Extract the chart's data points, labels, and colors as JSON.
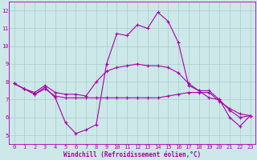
{
  "xlabel": "Windchill (Refroidissement éolien,°C)",
  "bg_color": "#cce8e8",
  "line_color": "#aa00aa",
  "grid_color": "#aacccc",
  "xlim": [
    -0.5,
    23.5
  ],
  "ylim": [
    4.5,
    12.5
  ],
  "yticks": [
    5,
    6,
    7,
    8,
    9,
    10,
    11,
    12
  ],
  "xticks": [
    0,
    1,
    2,
    3,
    4,
    5,
    6,
    7,
    8,
    9,
    10,
    11,
    12,
    13,
    14,
    15,
    16,
    17,
    18,
    19,
    20,
    21,
    22,
    23
  ],
  "series1_x": [
    0,
    1,
    2,
    3,
    4,
    5,
    6,
    7,
    8,
    9,
    10,
    11,
    12,
    13,
    14,
    15,
    16,
    17,
    18,
    19,
    20,
    21,
    22,
    23
  ],
  "series1_y": [
    7.9,
    7.6,
    7.3,
    7.7,
    7.1,
    5.7,
    5.1,
    5.3,
    5.6,
    9.0,
    10.7,
    10.6,
    11.2,
    11.0,
    11.9,
    11.4,
    10.2,
    7.8,
    7.5,
    7.5,
    7.0,
    6.0,
    5.5,
    6.1
  ],
  "series2_x": [
    0,
    1,
    2,
    3,
    4,
    5,
    6,
    7,
    8,
    9,
    10,
    11,
    12,
    13,
    14,
    15,
    16,
    17,
    18,
    19,
    20,
    21,
    22,
    23
  ],
  "series2_y": [
    7.9,
    7.6,
    7.3,
    7.6,
    7.2,
    7.1,
    7.1,
    7.1,
    7.1,
    7.1,
    7.1,
    7.1,
    7.1,
    7.1,
    7.1,
    7.2,
    7.3,
    7.4,
    7.4,
    7.4,
    6.9,
    6.5,
    6.2,
    6.1
  ],
  "series3_x": [
    0,
    1,
    2,
    3,
    4,
    5,
    6,
    7,
    8,
    9,
    10,
    11,
    12,
    13,
    14,
    15,
    16,
    17,
    18,
    19,
    20,
    21,
    22,
    23
  ],
  "series3_y": [
    7.9,
    7.6,
    7.4,
    7.8,
    7.4,
    7.3,
    7.3,
    7.2,
    8.0,
    8.6,
    8.8,
    8.9,
    9.0,
    8.9,
    8.9,
    8.8,
    8.5,
    7.9,
    7.5,
    7.1,
    7.0,
    6.4,
    6.0,
    6.1
  ],
  "tick_fontsize": 5.0,
  "xlabel_fontsize": 5.5
}
